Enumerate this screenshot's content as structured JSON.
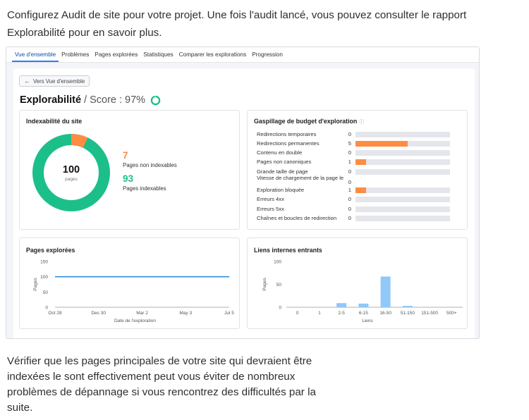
{
  "intro_text": "Configurez Audit de site pour votre projet. Une fois l'audit lancé, vous pouvez consulter le rapport Explorabilité pour en savoir plus.",
  "outro_text": "Vérifier que les pages principales de votre site qui devraient être indexées le sont effectivement peut vous éviter de nombreux problèmes de dépannage si vous rencontrez des difficultés par la suite.",
  "tabs": [
    "Vue d'ensemble",
    "Problèmes",
    "Pages explorées",
    "Statistiques",
    "Comparer les explorations",
    "Progression"
  ],
  "active_tab": 0,
  "back_button": "Vers Vue d'ensemble",
  "page_title": "Explorabilité",
  "score_text": "/ Score : 97%",
  "score_value": 97,
  "colors": {
    "accent_orange": "#ff8c42",
    "accent_green": "#1cbf8a",
    "line_blue": "#2e8ede",
    "bar_blue": "#90c8f8",
    "tab_active": "#2f7cf6"
  },
  "indexability": {
    "title": "Indexabilité du site",
    "total": "100",
    "total_label": "pages",
    "non_indexable_count": "7",
    "non_indexable_label": "Pages non indexables",
    "indexable_count": "93",
    "indexable_label": "Pages indexables"
  },
  "budget": {
    "title": "Gaspillage de budget d'exploration",
    "info_icon": "info-icon",
    "max": 9,
    "rows": [
      {
        "label": "Redirections temporaires",
        "value": 0
      },
      {
        "label": "Redirections permanentes",
        "value": 5
      },
      {
        "label": "Contenu en double",
        "value": 0
      },
      {
        "label": "Pages non canoniques",
        "value": 1
      },
      {
        "label": "Grande taille de page",
        "value": 0
      },
      {
        "label": "Vitesse de chargement de la page le",
        "value": 0
      },
      {
        "label": "Exploration bloquée",
        "value": 1
      },
      {
        "label": "Erreurs 4xx",
        "value": 0
      },
      {
        "label": "Erreurs 5xx",
        "value": 0
      },
      {
        "label": "Chaînes et boucles de redirection",
        "value": 0
      }
    ]
  },
  "chart_data": [
    {
      "type": "line",
      "title": "Pages explorées",
      "ylabel": "Pages",
      "xlabel": "Date de l'exploration",
      "x_ticks": [
        "Oct 28",
        "Dec 30",
        "Mar 2",
        "May 3",
        "Jul 5"
      ],
      "y_ticks": [
        0,
        50,
        100,
        150
      ],
      "ylim": [
        0,
        150
      ],
      "series": [
        {
          "values": [
            100,
            100,
            100,
            100,
            100
          ]
        }
      ]
    },
    {
      "type": "bar",
      "title": "Liens internes entrants",
      "ylabel": "Pages",
      "xlabel": "Liens",
      "categories": [
        "0",
        "1",
        "2-5",
        "6-15",
        "16-50",
        "51-150",
        "151-500",
        "500+"
      ],
      "values": [
        0,
        0,
        9,
        8,
        67,
        3,
        0,
        0
      ],
      "y_ticks": [
        0,
        50,
        100
      ],
      "ylim": [
        0,
        100
      ]
    }
  ]
}
